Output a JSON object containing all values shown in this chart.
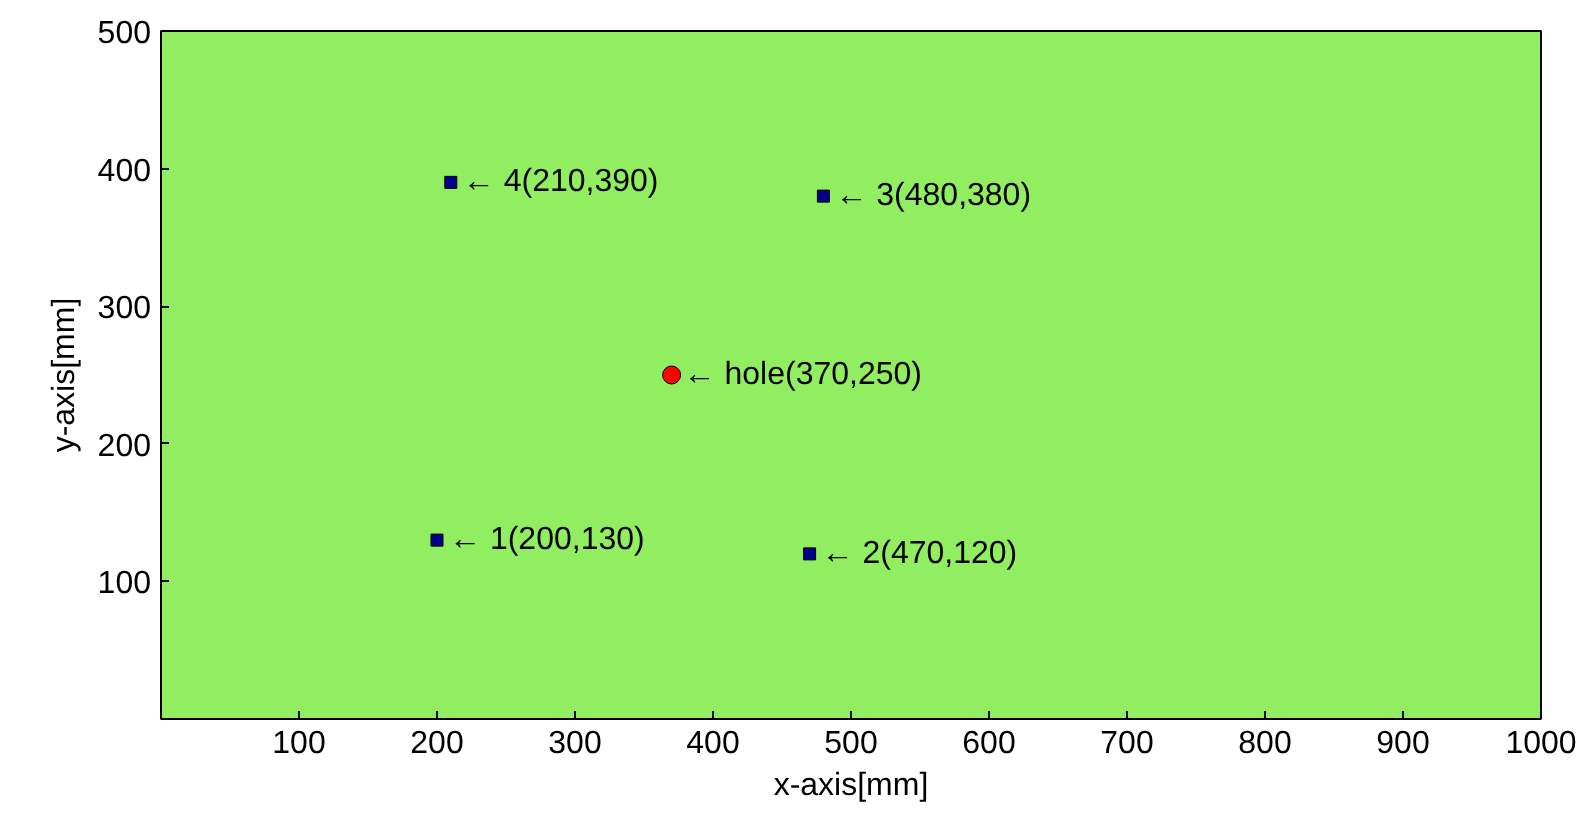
{
  "chart_data": {
    "type": "scatter",
    "xlabel": "x-axis[mm]",
    "ylabel": "y-axis[mm]",
    "xlim": [
      0,
      1000
    ],
    "ylim": [
      0,
      500
    ],
    "xticks": [
      100,
      200,
      300,
      400,
      500,
      600,
      700,
      800,
      900,
      1000
    ],
    "yticks": [
      100,
      200,
      300,
      400,
      500
    ],
    "grid": false,
    "series": [
      {
        "color": "#00008b",
        "marker": "square",
        "x": [
          200,
          470,
          480,
          210
        ],
        "values": [
          130,
          120,
          380,
          390
        ]
      },
      {
        "color": "#ff0000",
        "marker": "circle",
        "x": [
          370
        ],
        "values": [
          250
        ]
      }
    ],
    "annotations": [
      {
        "text": "← 1(200,130)",
        "x": 200,
        "y": 130
      },
      {
        "text": "← 2(470,120)",
        "x": 470,
        "y": 120
      },
      {
        "text": "← 3(480,380)",
        "x": 480,
        "y": 380
      },
      {
        "text": "← 4(210,390)",
        "x": 210,
        "y": 390
      },
      {
        "text": "← hole(370,250)",
        "x": 370,
        "y": 250
      }
    ]
  }
}
